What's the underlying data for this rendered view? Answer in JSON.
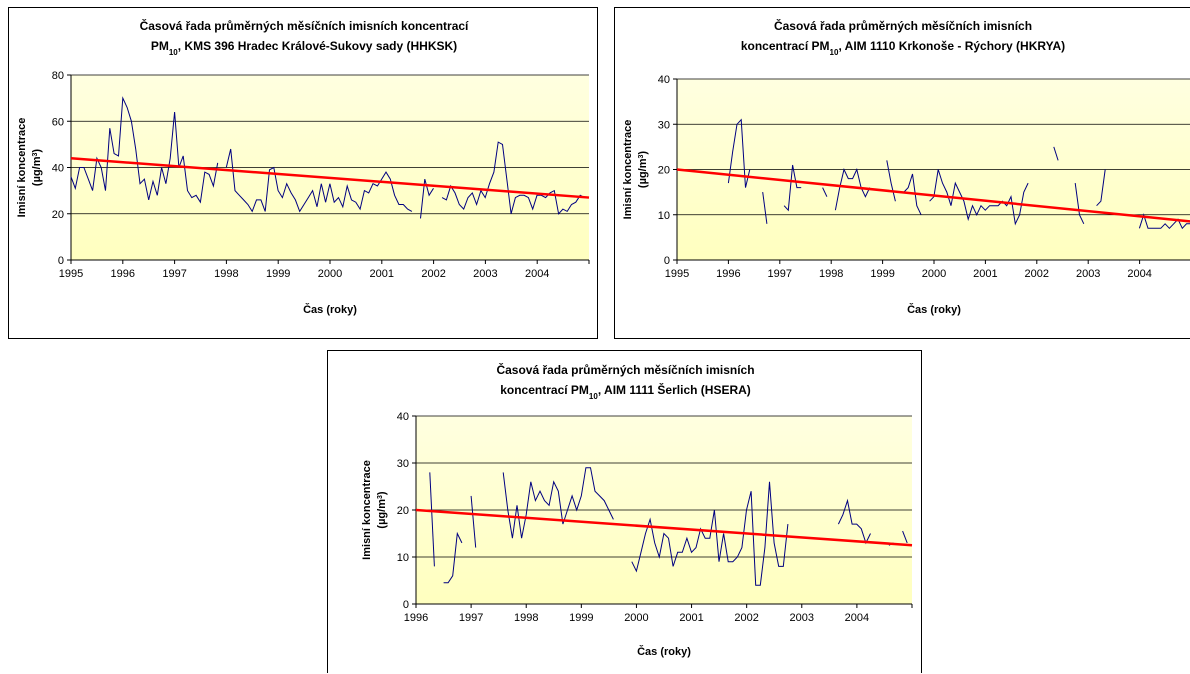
{
  "chart_data": [
    {
      "type": "line",
      "title_line1": "Časová řada průměrných měsíčních imisních koncentrací",
      "title_line2_prefix": "PM",
      "title_line2_sub": "10",
      "title_line2_rest": ", KMS 396 Hradec Králové-Sukovy sady  (HHKSK)",
      "xlabel": "Čas (roky)",
      "ylabel_line1": "Imisní koncentrace",
      "ylabel_unit_prefix": "(µg/m",
      "ylabel_unit_sup": "3",
      "ylabel_unit_suffix": ")",
      "xlim": [
        1995,
        2005
      ],
      "ylim": [
        0,
        80
      ],
      "xticks": [
        "1995",
        "1996",
        "1997",
        "1998",
        "1999",
        "2000",
        "2001",
        "2002",
        "2003",
        "2004"
      ],
      "yticks": [
        "0",
        "20",
        "40",
        "60",
        "80"
      ],
      "grid": true,
      "colors": {
        "plot_top": "#ffffe0",
        "plot_bottom": "#ffffbf",
        "series": "#000080",
        "trend": "#ff0000"
      },
      "series": [
        {
          "x_start": 1995.0,
          "x_step": 0.0833,
          "values": [
            36,
            31,
            40,
            40,
            35,
            30,
            44,
            40,
            30,
            57,
            46,
            45,
            70,
            66,
            60,
            48,
            33,
            35,
            26,
            34,
            28,
            40,
            33,
            44,
            64,
            40,
            45,
            30,
            27,
            28,
            25,
            38,
            37,
            32,
            42,
            null,
            40,
            48,
            30,
            28,
            26,
            24,
            21,
            26,
            26,
            21,
            39,
            40,
            30,
            27,
            33,
            29,
            26,
            21,
            24,
            27,
            30,
            23,
            33,
            25,
            33,
            25,
            27,
            23,
            32,
            26,
            25,
            22,
            30,
            29,
            33,
            32,
            35,
            38,
            35,
            28,
            24,
            24,
            22,
            21,
            null,
            18,
            35,
            28,
            31,
            null,
            27,
            26,
            32,
            29,
            24,
            22,
            27,
            29,
            24,
            30,
            27,
            33,
            38,
            51,
            50,
            35,
            20,
            27,
            28,
            28,
            27,
            22,
            28,
            28,
            27,
            29,
            30,
            20,
            22,
            21,
            24,
            25,
            28,
            27
          ]
        }
      ],
      "trend": {
        "x": [
          1995,
          2005
        ],
        "y": [
          44,
          27
        ]
      }
    },
    {
      "type": "line",
      "title_line1": "Časová řada průměrných měsíčních imisních",
      "title_line2_prefix": "koncentrací PM",
      "title_line2_sub": "10",
      "title_line2_rest": ", AIM 1110 Krkonoše - Rýchory (HKRYA)",
      "xlabel": "Čas (roky)",
      "ylabel_line1": "Imisní koncentrace",
      "ylabel_unit_prefix": "(µg/m",
      "ylabel_unit_sup": "3",
      "ylabel_unit_suffix": ")",
      "xlim": [
        1995,
        2005
      ],
      "ylim": [
        0,
        40
      ],
      "xticks": [
        "1995",
        "1996",
        "1997",
        "1998",
        "1999",
        "2000",
        "2001",
        "2002",
        "2003",
        "2004"
      ],
      "yticks": [
        "0",
        "10",
        "20",
        "30",
        "40"
      ],
      "grid": true,
      "colors": {
        "plot_top": "#ffffe0",
        "plot_bottom": "#ffffbf",
        "series": "#000080",
        "trend": "#ff0000"
      },
      "series": [
        {
          "x_start": 1996.0,
          "x_step": 0.0833,
          "values": [
            17,
            24,
            30,
            31,
            16,
            20,
            null,
            null,
            15,
            8,
            null,
            null,
            null,
            12,
            11,
            21,
            16,
            16,
            null,
            null,
            null,
            null,
            16,
            14,
            null,
            11,
            16,
            20,
            18,
            18,
            20,
            16,
            14,
            16,
            null,
            null,
            null,
            22,
            17,
            13,
            null,
            15,
            16,
            19,
            12,
            10,
            null,
            13,
            14,
            20,
            17,
            15,
            12,
            17,
            15,
            13,
            9,
            12,
            10,
            12,
            11,
            12,
            12,
            12,
            13,
            12,
            14,
            8,
            10,
            15,
            17,
            null,
            null,
            null,
            null,
            null,
            25,
            22,
            null,
            null,
            null,
            17,
            10,
            8,
            null,
            null,
            12,
            13,
            20,
            null,
            null,
            null,
            null,
            null,
            null,
            null,
            7,
            10,
            7,
            7,
            7,
            7,
            8,
            7,
            8,
            9,
            7,
            8,
            8,
            9,
            9
          ]
        }
      ],
      "trend": {
        "x": [
          1995,
          2005
        ],
        "y": [
          20,
          8.5
        ]
      }
    },
    {
      "type": "line",
      "title_line1": "Časová řada průměrných měsíčních imisních",
      "title_line2_prefix": "koncentrací PM",
      "title_line2_sub": "10",
      "title_line2_rest": ", AIM 1111 Šerlich (HSERA)",
      "xlabel": "Čas (roky)",
      "ylabel_line1": "Imisní koncentrace",
      "ylabel_unit_prefix": "(µg/m",
      "ylabel_unit_sup": "3",
      "ylabel_unit_suffix": ")",
      "xlim": [
        1996,
        2005
      ],
      "ylim": [
        0,
        40
      ],
      "xticks": [
        "1996",
        "1997",
        "1998",
        "1999",
        "2000",
        "2001",
        "2002",
        "2003",
        "2004"
      ],
      "yticks": [
        "0",
        "10",
        "20",
        "30",
        "40"
      ],
      "grid": true,
      "colors": {
        "plot_top": "#ffffe0",
        "plot_bottom": "#ffffbf",
        "series": "#000080",
        "trend": "#ff0000"
      },
      "series": [
        {
          "x_start": 1996.25,
          "x_step": 0.0833,
          "values": [
            28,
            8,
            null,
            4.5,
            4.5,
            6,
            15,
            13,
            null,
            23,
            12,
            null,
            null,
            null,
            null,
            null,
            28,
            20,
            14,
            21,
            14,
            19,
            26,
            22,
            24,
            22,
            21,
            26,
            24,
            17,
            20,
            23,
            20,
            23,
            29,
            29,
            24,
            23,
            22,
            20,
            18,
            null,
            null,
            null,
            9,
            7,
            11,
            15,
            18,
            13,
            10,
            15,
            14,
            8,
            11,
            11,
            14,
            11,
            12,
            16,
            14,
            14,
            20,
            9,
            15,
            9,
            9,
            10,
            12,
            20,
            24,
            4,
            4,
            12,
            26,
            13,
            8,
            8,
            17,
            null,
            null,
            null,
            null,
            null,
            null,
            null,
            null,
            null,
            null,
            17,
            19,
            22,
            17,
            17,
            16,
            13,
            15,
            null,
            null,
            null,
            12.5,
            13,
            null,
            15.5,
            13
          ]
        }
      ],
      "trend": {
        "x": [
          1996,
          2005
        ],
        "y": [
          20,
          12.5
        ]
      }
    }
  ]
}
